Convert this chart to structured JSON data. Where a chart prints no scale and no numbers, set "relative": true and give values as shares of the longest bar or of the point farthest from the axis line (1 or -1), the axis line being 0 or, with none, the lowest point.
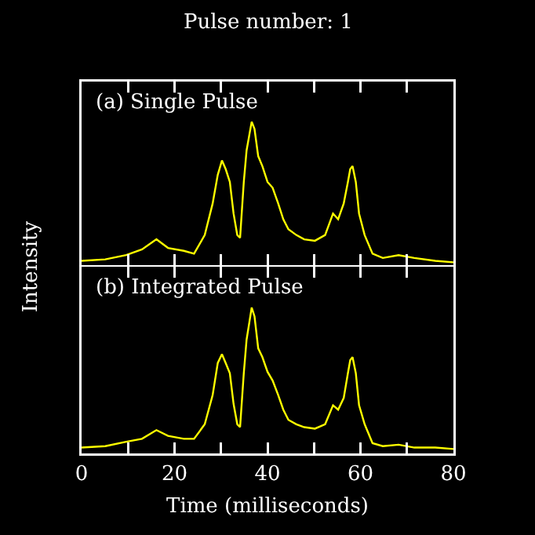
{
  "chart_data": [
    {
      "type": "line",
      "title": "(a) Single Pulse",
      "annotations": [
        "Pulse number: 1"
      ],
      "ylabel": "Intensity",
      "relative": true,
      "tick_labels": false,
      "xlim": [
        0,
        80
      ],
      "xticks": [
        0,
        {
          "value": 10,
          "label": null
        },
        20,
        {
          "value": 30,
          "label": null
        },
        40,
        {
          "value": 50,
          "label": null
        },
        60,
        {
          "value": 70,
          "label": null
        },
        80
      ],
      "series": [
        {
          "color": "#ffff00",
          "x": [
            0,
            5.1,
            9.6,
            13,
            16.1,
            18.6,
            22,
            24.2,
            26.5,
            28.2,
            29.3,
            30.2,
            31,
            31.9,
            32.7,
            33.5,
            34.1,
            34.9,
            35.5,
            36.1,
            36.6,
            37.2,
            38,
            38.9,
            40,
            41.1,
            42.3,
            43.4,
            44.5,
            46.2,
            47.9,
            50.2,
            52.4,
            54.1,
            55.2,
            56.4,
            57.3,
            57.8,
            58.3,
            59,
            59.7,
            60.9,
            62.6,
            64.8,
            68.2,
            71.6,
            76.1,
            80
          ],
          "values": [
            0.03,
            0.04,
            0.07,
            0.11,
            0.18,
            0.12,
            0.1,
            0.08,
            0.21,
            0.43,
            0.63,
            0.73,
            0.67,
            0.58,
            0.36,
            0.21,
            0.19,
            0.58,
            0.8,
            0.91,
            1,
            0.95,
            0.76,
            0.69,
            0.58,
            0.54,
            0.43,
            0.32,
            0.25,
            0.21,
            0.18,
            0.17,
            0.21,
            0.36,
            0.32,
            0.43,
            0.58,
            0.67,
            0.69,
            0.58,
            0.36,
            0.21,
            0.08,
            0.05,
            0.07,
            0.05,
            0.03,
            0.02
          ]
        }
      ]
    },
    {
      "type": "line",
      "title": "(b) Integrated Pulse",
      "xlabel": "Time (milliseconds)",
      "relative": true,
      "tick_labels": "x",
      "xlim": [
        0,
        80
      ],
      "xticks": [
        0,
        {
          "value": 10,
          "label": null
        },
        20,
        {
          "value": 30,
          "label": null
        },
        40,
        {
          "value": 50,
          "label": null
        },
        60,
        {
          "value": 70,
          "label": null
        },
        80
      ],
      "series": [
        {
          "color": "#ffff00",
          "x": [
            0,
            5.1,
            9.6,
            13,
            16.1,
            18.6,
            22,
            24.2,
            26.5,
            28.2,
            29.3,
            30.2,
            31,
            31.9,
            32.7,
            33.5,
            34.1,
            34.9,
            35.5,
            36.1,
            36.6,
            37.2,
            38,
            38.9,
            40,
            41.1,
            42.3,
            43.4,
            44.5,
            46.2,
            47.9,
            50.2,
            52.4,
            54.1,
            55.2,
            56.4,
            57.3,
            57.8,
            58.3,
            59,
            59.7,
            60.9,
            62.6,
            64.8,
            68.2,
            71.6,
            76.1,
            80
          ],
          "values": [
            0.04,
            0.05,
            0.08,
            0.1,
            0.16,
            0.12,
            0.1,
            0.1,
            0.2,
            0.4,
            0.62,
            0.68,
            0.62,
            0.55,
            0.34,
            0.2,
            0.18,
            0.55,
            0.78,
            0.9,
            1,
            0.94,
            0.72,
            0.66,
            0.56,
            0.5,
            0.4,
            0.3,
            0.23,
            0.2,
            0.18,
            0.17,
            0.2,
            0.33,
            0.3,
            0.38,
            0.55,
            0.64,
            0.66,
            0.55,
            0.33,
            0.2,
            0.07,
            0.05,
            0.06,
            0.04,
            0.04,
            0.03
          ]
        }
      ]
    }
  ]
}
